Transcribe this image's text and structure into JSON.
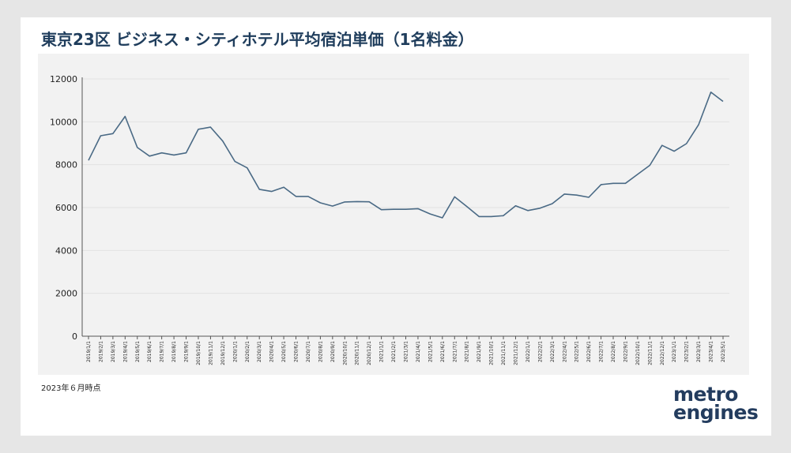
{
  "title": "東京23区 ビジネス・シティホテル平均宿泊単価（1名料金）",
  "note": "2023年６月時点",
  "logo": {
    "line1": "metro",
    "line2": "engines"
  },
  "colors": {
    "line": "#4a6a85",
    "title": "#1f3d5c",
    "logo": "#233c5e",
    "accent": "#e05a2b"
  },
  "chart_data": {
    "type": "line",
    "title": "東京23区 ビジネス・シティホテル平均宿泊単価（1名料金）",
    "xlabel": "",
    "ylabel": "",
    "ylim": [
      0,
      12000
    ],
    "yticks": [
      0,
      2000,
      4000,
      6000,
      8000,
      10000,
      12000
    ],
    "grid": true,
    "legend": "none",
    "x": [
      "2019/1/1",
      "2019/2/1",
      "2019/3/1",
      "2019/4/1",
      "2019/5/1",
      "2019/6/1",
      "2019/7/1",
      "2019/8/1",
      "2019/9/1",
      "2019/10/1",
      "2019/11/1",
      "2019/12/1",
      "2020/1/1",
      "2020/2/1",
      "2020/3/1",
      "2020/4/1",
      "2020/5/1",
      "2020/6/1",
      "2020/7/1",
      "2020/8/1",
      "2020/9/1",
      "2020/10/1",
      "2020/11/1",
      "2020/12/1",
      "2021/1/1",
      "2021/2/1",
      "2021/3/1",
      "2021/4/1",
      "2021/5/1",
      "2021/6/1",
      "2021/7/1",
      "2021/8/1",
      "2021/9/1",
      "2021/10/1",
      "2021/11/1",
      "2021/12/1",
      "2022/1/1",
      "2022/2/1",
      "2022/3/1",
      "2022/4/1",
      "2022/5/1",
      "2022/6/1",
      "2022/7/1",
      "2022/8/1",
      "2022/9/1",
      "2022/10/1",
      "2022/11/1",
      "2022/12/1",
      "2023/1/1",
      "2023/2/1",
      "2023/3/1",
      "2023/4/1",
      "2023/5/1"
    ],
    "series": [
      {
        "values": [
          8200,
          9350,
          9450,
          10250,
          8800,
          8400,
          8550,
          8450,
          8550,
          9650,
          9750,
          9100,
          8150,
          7850,
          6850,
          6750,
          6950,
          6520,
          6520,
          6220,
          6070,
          6260,
          6280,
          6270,
          5900,
          5920,
          5920,
          5950,
          5700,
          5520,
          6500,
          6050,
          5580,
          5580,
          5620,
          6080,
          5860,
          5970,
          6180,
          6630,
          6580,
          6480,
          7070,
          7130,
          7130,
          7550,
          7970,
          8900,
          8630,
          8980,
          9870,
          11380,
          10950
        ]
      }
    ]
  }
}
